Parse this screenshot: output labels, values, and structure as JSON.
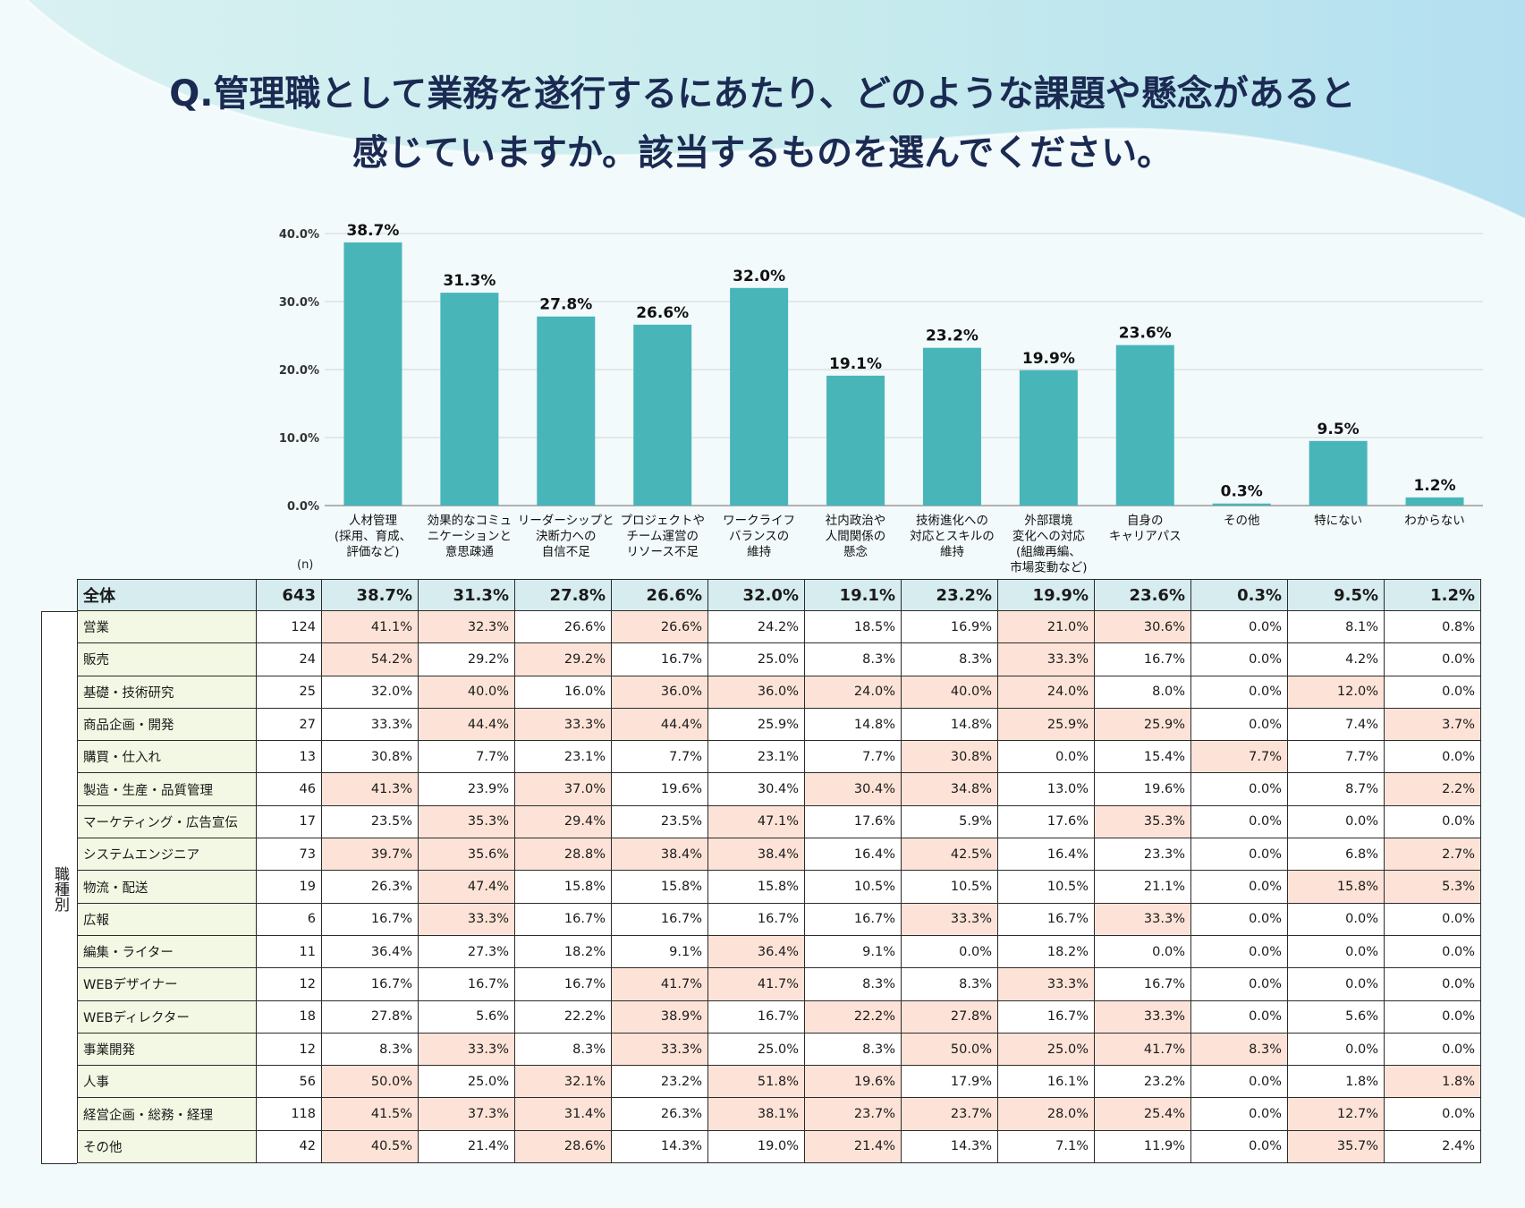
{
  "title": {
    "line1": "Q.管理職として業務を遂行するにあたり、どのような課題や懸念があると",
    "line2": "感じていますか。該当するものを選んでください。"
  },
  "colors": {
    "bar": "#48b5b9",
    "highlight": "#fde3d7",
    "header_bg": "#d6ecef",
    "label_bg": "#f2f8e3",
    "title": "#1b2a52"
  },
  "chart_data": {
    "type": "bar",
    "categories": [
      [
        "人材管理",
        "(採用、育成、",
        "評価など)"
      ],
      [
        "効果的なコミュ",
        "ニケーションと",
        "意思疎通"
      ],
      [
        "リーダーシップと",
        "決断力への",
        "自信不足"
      ],
      [
        "プロジェクトや",
        "チーム運営の",
        "リソース不足"
      ],
      [
        "ワークライフ",
        "バランスの",
        "維持"
      ],
      [
        "社内政治や",
        "人間関係の",
        "懸念"
      ],
      [
        "技術進化への",
        "対応とスキルの",
        "維持"
      ],
      [
        "外部環境",
        "変化への対応",
        "(組織再編、",
        "市場変動など)"
      ],
      [
        "自身の",
        "キャリアパス"
      ],
      [
        "その他"
      ],
      [
        "特にない"
      ],
      [
        "わからない"
      ]
    ],
    "values": [
      38.7,
      31.3,
      27.8,
      26.6,
      32.0,
      19.1,
      23.2,
      19.9,
      23.6,
      0.3,
      9.5,
      1.2
    ],
    "value_labels": [
      "38.7%",
      "31.3%",
      "27.8%",
      "26.6%",
      "32.0%",
      "19.1%",
      "23.2%",
      "19.9%",
      "23.6%",
      "0.3%",
      "9.5%",
      "1.2%"
    ],
    "ylim": [
      0,
      40
    ],
    "yticks": [
      0,
      10,
      20,
      30,
      40
    ],
    "ytick_labels": [
      "0.0%",
      "10.0%",
      "20.0%",
      "30.0%",
      "40.0%"
    ],
    "grid": true,
    "title": "",
    "xlabel": "",
    "ylabel": ""
  },
  "table": {
    "n_label": "(n)",
    "side_label": "職種別",
    "overall": {
      "label": "全体",
      "n": "643",
      "values": [
        "38.7%",
        "31.3%",
        "27.8%",
        "26.6%",
        "32.0%",
        "19.1%",
        "23.2%",
        "19.9%",
        "23.6%",
        "0.3%",
        "9.5%",
        "1.2%"
      ]
    },
    "rows": [
      {
        "label": "営業",
        "n": "124",
        "values": [
          "41.1%",
          "32.3%",
          "26.6%",
          "26.6%",
          "24.2%",
          "18.5%",
          "16.9%",
          "21.0%",
          "30.6%",
          "0.0%",
          "8.1%",
          "0.8%"
        ],
        "hl": [
          0,
          1,
          3,
          7,
          8
        ]
      },
      {
        "label": "販売",
        "n": "24",
        "values": [
          "54.2%",
          "29.2%",
          "29.2%",
          "16.7%",
          "25.0%",
          "8.3%",
          "8.3%",
          "33.3%",
          "16.7%",
          "0.0%",
          "4.2%",
          "0.0%"
        ],
        "hl": [
          0,
          2,
          7
        ]
      },
      {
        "label": "基礎・技術研究",
        "n": "25",
        "values": [
          "32.0%",
          "40.0%",
          "16.0%",
          "36.0%",
          "36.0%",
          "24.0%",
          "40.0%",
          "24.0%",
          "8.0%",
          "0.0%",
          "12.0%",
          "0.0%"
        ],
        "hl": [
          1,
          3,
          4,
          5,
          6,
          7,
          10
        ]
      },
      {
        "label": "商品企画・開発",
        "n": "27",
        "values": [
          "33.3%",
          "44.4%",
          "33.3%",
          "44.4%",
          "25.9%",
          "14.8%",
          "14.8%",
          "25.9%",
          "25.9%",
          "0.0%",
          "7.4%",
          "3.7%"
        ],
        "hl": [
          1,
          2,
          3,
          7,
          8,
          11
        ]
      },
      {
        "label": "購買・仕入れ",
        "n": "13",
        "values": [
          "30.8%",
          "7.7%",
          "23.1%",
          "7.7%",
          "23.1%",
          "7.7%",
          "30.8%",
          "0.0%",
          "15.4%",
          "7.7%",
          "7.7%",
          "0.0%"
        ],
        "hl": [
          6,
          9
        ]
      },
      {
        "label": "製造・生産・品質管理",
        "n": "46",
        "values": [
          "41.3%",
          "23.9%",
          "37.0%",
          "19.6%",
          "30.4%",
          "30.4%",
          "34.8%",
          "13.0%",
          "19.6%",
          "0.0%",
          "8.7%",
          "2.2%"
        ],
        "hl": [
          0,
          2,
          5,
          6,
          11
        ]
      },
      {
        "label": "マーケティング・広告宣伝",
        "n": "17",
        "values": [
          "23.5%",
          "35.3%",
          "29.4%",
          "23.5%",
          "47.1%",
          "17.6%",
          "5.9%",
          "17.6%",
          "35.3%",
          "0.0%",
          "0.0%",
          "0.0%"
        ],
        "hl": [
          1,
          2,
          4,
          8
        ]
      },
      {
        "label": "システムエンジニア",
        "n": "73",
        "values": [
          "39.7%",
          "35.6%",
          "28.8%",
          "38.4%",
          "38.4%",
          "16.4%",
          "42.5%",
          "16.4%",
          "23.3%",
          "0.0%",
          "6.8%",
          "2.7%"
        ],
        "hl": [
          0,
          1,
          2,
          3,
          4,
          6,
          11
        ]
      },
      {
        "label": "物流・配送",
        "n": "19",
        "values": [
          "26.3%",
          "47.4%",
          "15.8%",
          "15.8%",
          "15.8%",
          "10.5%",
          "10.5%",
          "10.5%",
          "21.1%",
          "0.0%",
          "15.8%",
          "5.3%"
        ],
        "hl": [
          1,
          10,
          11
        ]
      },
      {
        "label": "広報",
        "n": "6",
        "values": [
          "16.7%",
          "33.3%",
          "16.7%",
          "16.7%",
          "16.7%",
          "16.7%",
          "33.3%",
          "16.7%",
          "33.3%",
          "0.0%",
          "0.0%",
          "0.0%"
        ],
        "hl": [
          1,
          6,
          8
        ]
      },
      {
        "label": "編集・ライター",
        "n": "11",
        "values": [
          "36.4%",
          "27.3%",
          "18.2%",
          "9.1%",
          "36.4%",
          "9.1%",
          "0.0%",
          "18.2%",
          "0.0%",
          "0.0%",
          "0.0%",
          "0.0%"
        ],
        "hl": [
          4
        ]
      },
      {
        "label": "WEBデザイナー",
        "n": "12",
        "values": [
          "16.7%",
          "16.7%",
          "16.7%",
          "41.7%",
          "41.7%",
          "8.3%",
          "8.3%",
          "33.3%",
          "16.7%",
          "0.0%",
          "0.0%",
          "0.0%"
        ],
        "hl": [
          3,
          4,
          7
        ]
      },
      {
        "label": "WEBディレクター",
        "n": "18",
        "values": [
          "27.8%",
          "5.6%",
          "22.2%",
          "38.9%",
          "16.7%",
          "22.2%",
          "27.8%",
          "16.7%",
          "33.3%",
          "0.0%",
          "5.6%",
          "0.0%"
        ],
        "hl": [
          3,
          5,
          6,
          8
        ]
      },
      {
        "label": "事業開発",
        "n": "12",
        "values": [
          "8.3%",
          "33.3%",
          "8.3%",
          "33.3%",
          "25.0%",
          "8.3%",
          "50.0%",
          "25.0%",
          "41.7%",
          "8.3%",
          "0.0%",
          "0.0%"
        ],
        "hl": [
          1,
          3,
          6,
          7,
          8,
          9
        ]
      },
      {
        "label": "人事",
        "n": "56",
        "values": [
          "50.0%",
          "25.0%",
          "32.1%",
          "23.2%",
          "51.8%",
          "19.6%",
          "17.9%",
          "16.1%",
          "23.2%",
          "0.0%",
          "1.8%",
          "1.8%"
        ],
        "hl": [
          0,
          2,
          4,
          5,
          11
        ]
      },
      {
        "label": "経営企画・総務・経理",
        "n": "118",
        "values": [
          "41.5%",
          "37.3%",
          "31.4%",
          "26.3%",
          "38.1%",
          "23.7%",
          "23.7%",
          "28.0%",
          "25.4%",
          "0.0%",
          "12.7%",
          "0.0%"
        ],
        "hl": [
          0,
          1,
          2,
          4,
          5,
          6,
          7,
          8,
          10
        ]
      },
      {
        "label": "その他",
        "n": "42",
        "values": [
          "40.5%",
          "21.4%",
          "28.6%",
          "14.3%",
          "19.0%",
          "21.4%",
          "14.3%",
          "7.1%",
          "11.9%",
          "0.0%",
          "35.7%",
          "2.4%"
        ],
        "hl": [
          0,
          2,
          5,
          10
        ]
      }
    ]
  }
}
